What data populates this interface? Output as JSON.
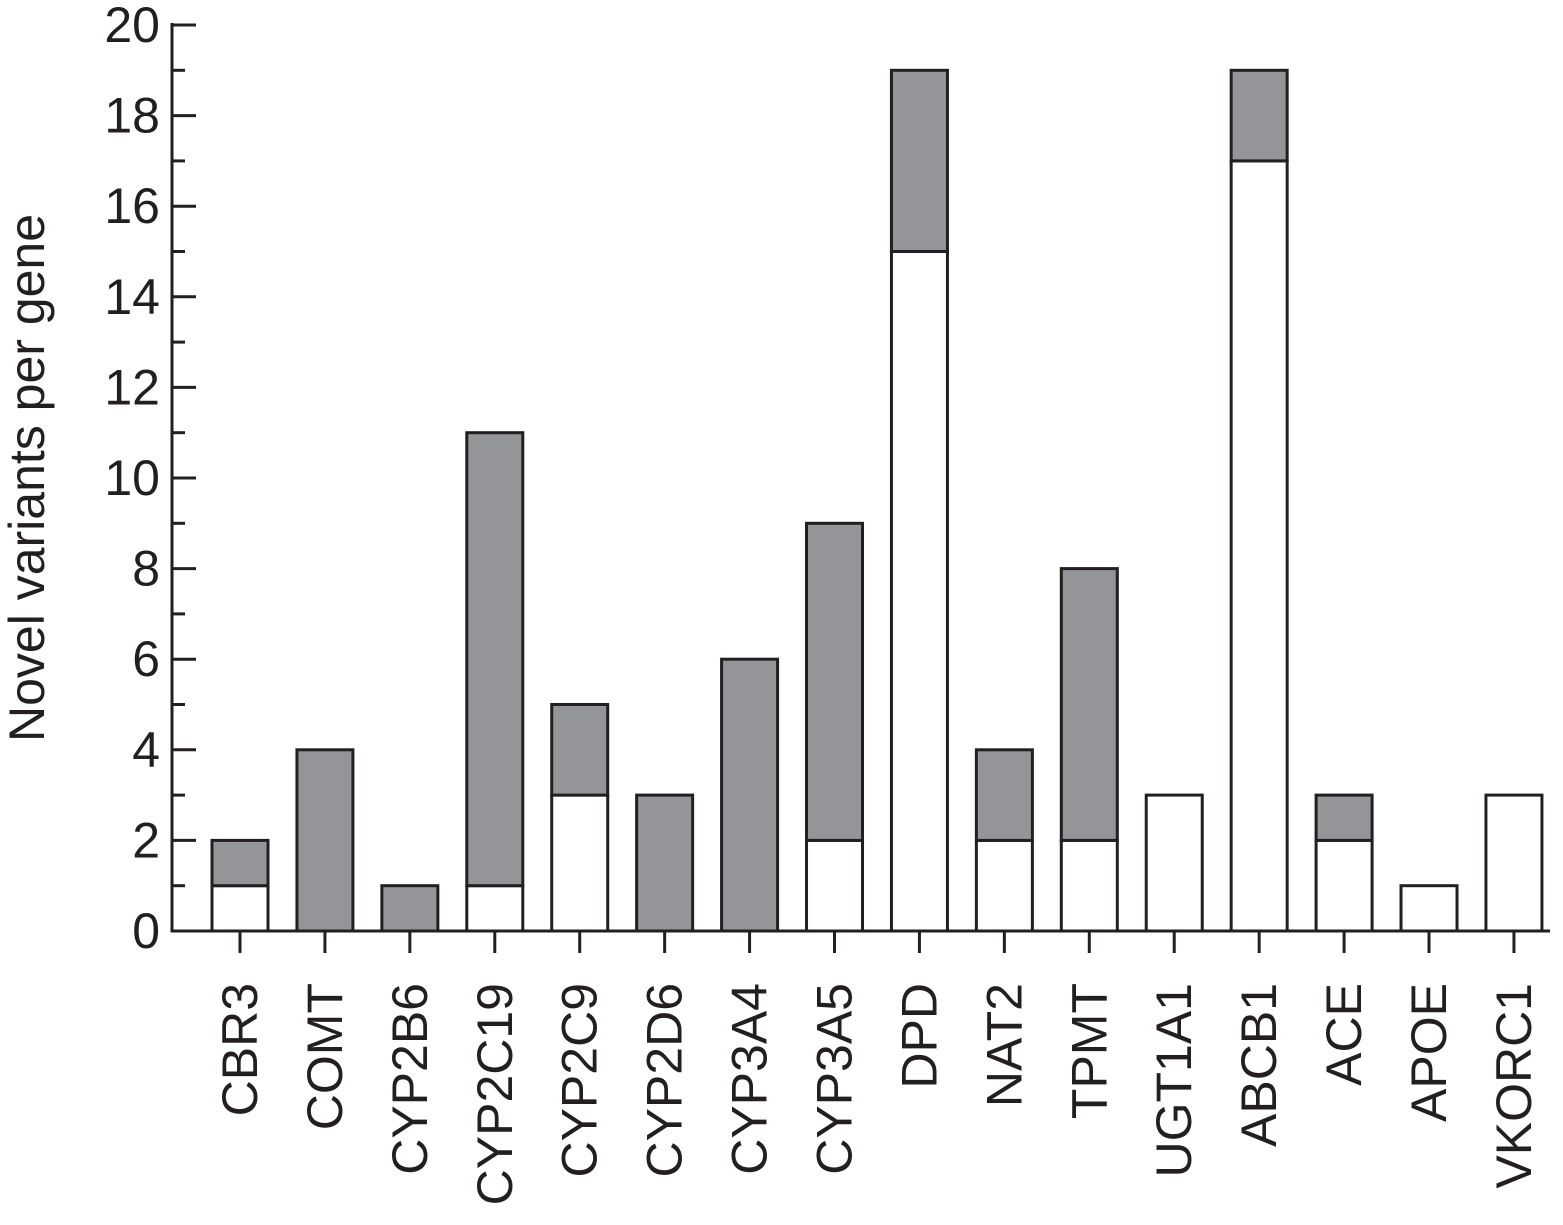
{
  "chart_data": {
    "type": "bar",
    "stacked": true,
    "title": "",
    "xlabel": "",
    "ylabel": "Novel variants per gene",
    "ylim": [
      0,
      20
    ],
    "yticks": [
      0,
      2,
      4,
      6,
      8,
      10,
      12,
      14,
      16,
      18,
      20
    ],
    "grid": false,
    "legend": "none",
    "categories": [
      "CBR3",
      "COMT",
      "CYP2B6",
      "CYP2C19",
      "CYP2C9",
      "CYP2D6",
      "CYP3A4",
      "CYP3A5",
      "DPD",
      "NAT2",
      "TPMT",
      "UGT1A1",
      "ABCB1",
      "ACE",
      "APOE",
      "VKORC1"
    ],
    "series": [
      {
        "color": "#ffffff",
        "values": [
          1,
          0,
          0,
          1,
          3,
          0,
          0,
          2,
          15,
          2,
          2,
          3,
          17,
          2,
          1,
          3
        ]
      },
      {
        "color": "#939598",
        "values": [
          1,
          4,
          1,
          10,
          2,
          3,
          6,
          7,
          4,
          2,
          6,
          0,
          2,
          1,
          0,
          0
        ]
      }
    ]
  }
}
